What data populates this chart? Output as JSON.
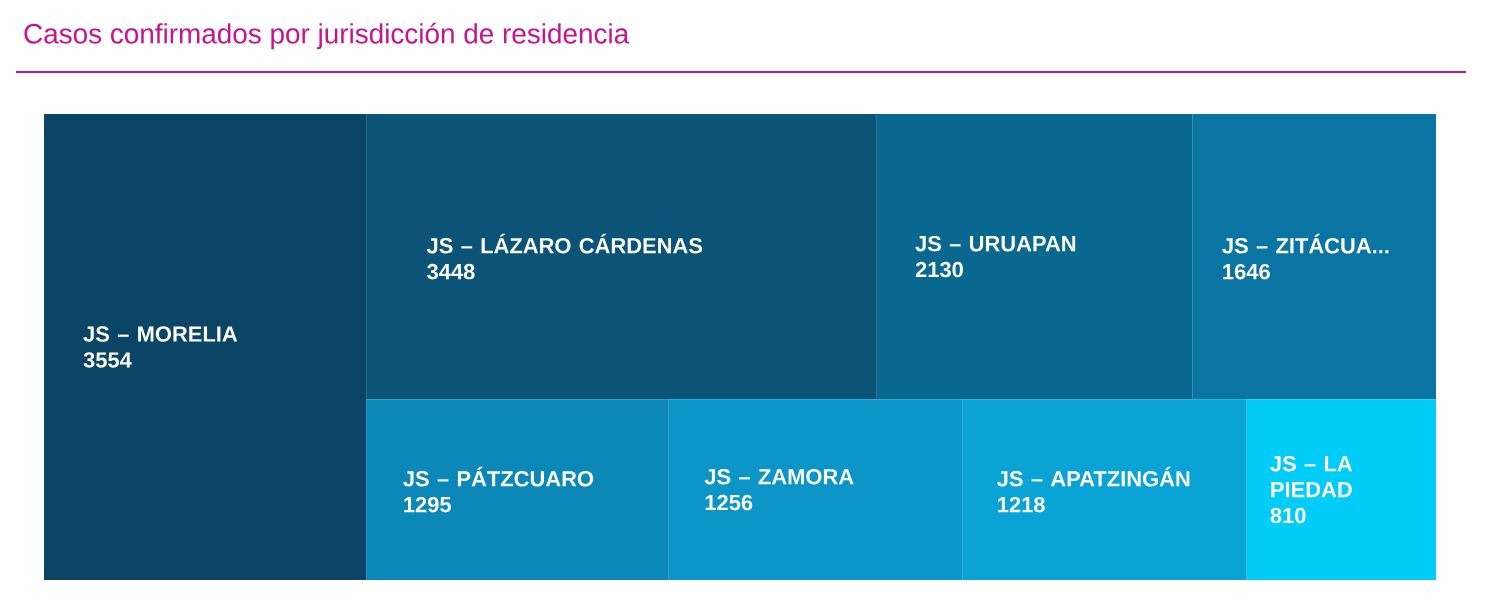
{
  "chart_data": {
    "type": "other",
    "title": "Casos confirmados por jurisdicción de residencia",
    "categories": [
      "JS – MORELIA",
      "JS – LÁZARO CÁRDENAS",
      "JS – URUAPAN",
      "JS – ZITÁCUA...",
      "JS – PÁTZCUARO",
      "JS – ZAMORA",
      "JS – APATZINGÁN",
      "JS – LA PIEDAD"
    ],
    "values": [
      3554,
      3448,
      2130,
      1646,
      1295,
      1256,
      1218,
      810
    ],
    "colors": [
      "#0a4566",
      "#0b5478",
      "#096890",
      "#0a75a2",
      "#0b88b8",
      "#0c96c8",
      "#0aa3d6",
      "#00ccf8"
    ],
    "data_labels": true
  }
}
